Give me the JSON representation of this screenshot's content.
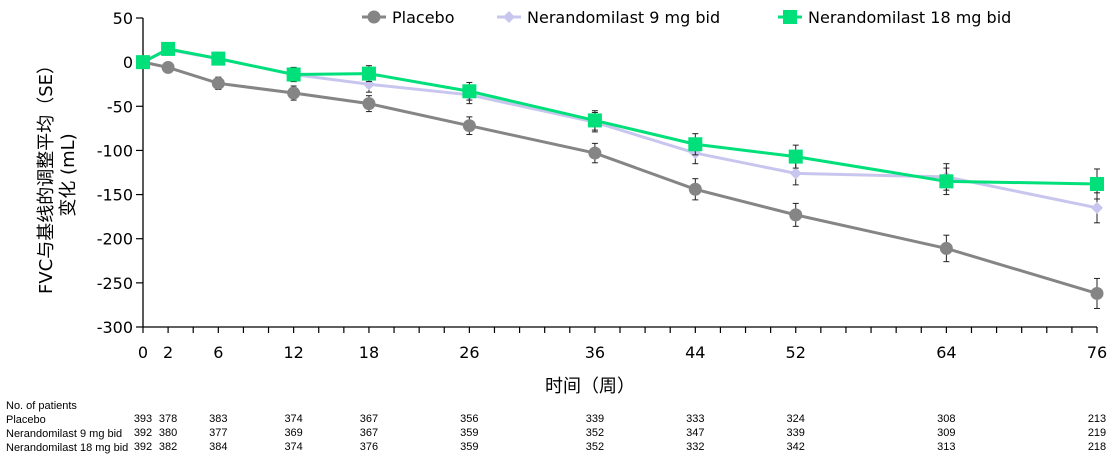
{
  "chart_data": {
    "type": "line",
    "title": "",
    "xlabel": "时间（周）",
    "ylabel_line1": "FVC与基线的调整平均（SE）",
    "ylabel_line2": "变化 (mL)",
    "ylim": [
      -300,
      50
    ],
    "xlim": [
      0,
      76
    ],
    "yticks": [
      50,
      0,
      -50,
      -100,
      -150,
      -200,
      -250,
      -300
    ],
    "xtick_labels": [
      0,
      2,
      6,
      12,
      18,
      26,
      36,
      44,
      52,
      64,
      76
    ],
    "xminor_tick_step": 2,
    "grid": false,
    "legend_position": "top",
    "x": [
      0,
      2,
      6,
      12,
      18,
      26,
      36,
      44,
      52,
      64,
      76
    ],
    "series": [
      {
        "name": "Placebo",
        "color": "#858585",
        "marker": "circle",
        "values": [
          0,
          -6,
          -24,
          -35,
          -47,
          -72,
          -103,
          -144,
          -173,
          -211,
          -262
        ],
        "se": [
          0,
          6,
          7,
          8,
          9,
          10,
          11,
          12,
          13,
          15,
          17
        ]
      },
      {
        "name": "Nerandomilast 9 mg bid",
        "color": "#C8C6EE",
        "marker": "diamond",
        "values": [
          0,
          14,
          4,
          -14,
          -25,
          -37,
          -68,
          -103,
          -126,
          -130,
          -165
        ],
        "se": [
          0,
          6,
          7,
          8,
          9,
          10,
          11,
          12,
          13,
          15,
          17
        ]
      },
      {
        "name": "Nerandomilast 18 mg bid",
        "color": "#00E07A",
        "marker": "square",
        "values": [
          0,
          15,
          4,
          -14,
          -13,
          -33,
          -66,
          -93,
          -107,
          -135,
          -138
        ],
        "se": [
          0,
          6,
          7,
          8,
          9,
          10,
          11,
          12,
          13,
          15,
          17
        ]
      }
    ]
  },
  "patients_table": {
    "title": "No. of patients",
    "weeks": [
      0,
      2,
      6,
      12,
      18,
      26,
      36,
      44,
      52,
      64,
      76
    ],
    "rows": [
      {
        "label": "Placebo",
        "values": [
          "393",
          "378",
          "383",
          "374",
          "367",
          "356",
          "339",
          "333",
          "324",
          "308",
          "213"
        ]
      },
      {
        "label": "Nerandomilast 9 mg bid",
        "values": [
          "392",
          "380",
          "377",
          "369",
          "367",
          "359",
          "352",
          "347",
          "339",
          "309",
          "219"
        ]
      },
      {
        "label": "Nerandomilast 18 mg bid",
        "values": [
          "392",
          "382",
          "384",
          "374",
          "376",
          "359",
          "352",
          "332",
          "342",
          "313",
          "218"
        ]
      }
    ]
  }
}
